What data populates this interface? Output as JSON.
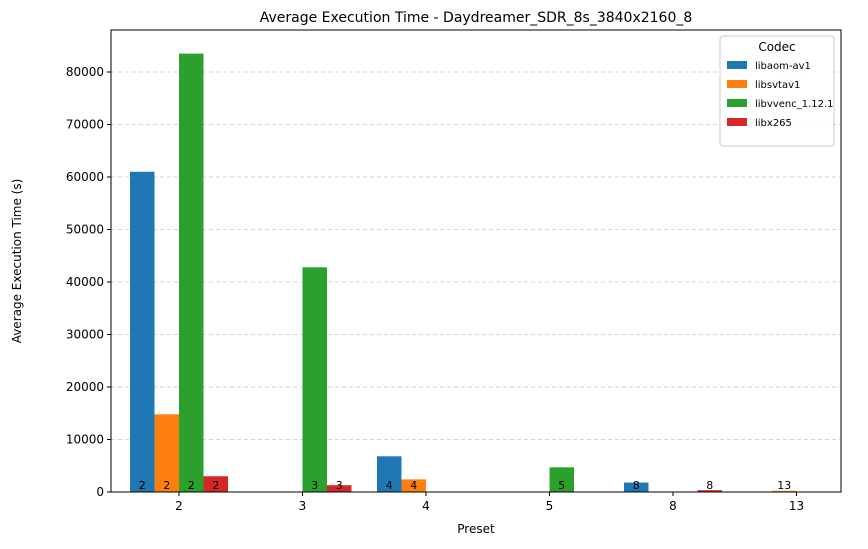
{
  "chart_data": {
    "type": "bar",
    "title": "Average Execution Time - Daydreamer_SDR_8s_3840x2160_8",
    "xlabel": "Preset",
    "ylabel": "Average Execution Time (s)",
    "categories": [
      "2",
      "3",
      "4",
      "5",
      "8",
      "13"
    ],
    "ylim": [
      0,
      88000
    ],
    "yticks": [
      0,
      10000,
      20000,
      30000,
      40000,
      50000,
      60000,
      70000,
      80000
    ],
    "grid": "y-dashed",
    "legend": {
      "title": "Codec",
      "placement": "top-right"
    },
    "series": [
      {
        "name": "libaom-av1",
        "color": "#1f77b4",
        "values": [
          61000,
          null,
          6800,
          null,
          1800,
          null
        ]
      },
      {
        "name": "libsvtav1",
        "color": "#ff7f0e",
        "values": [
          14800,
          null,
          2400,
          null,
          null,
          220
        ]
      },
      {
        "name": "libvvenc_1.12.1",
        "color": "#2ca02c",
        "values": [
          83500,
          42800,
          null,
          4700,
          null,
          null
        ]
      },
      {
        "name": "libx265",
        "color": "#d62728",
        "values": [
          3000,
          1300,
          null,
          null,
          350,
          null
        ]
      }
    ],
    "annotations": [
      {
        "series": 0,
        "category": "2",
        "text": "2"
      },
      {
        "series": 1,
        "category": "2",
        "text": "2"
      },
      {
        "series": 2,
        "category": "2",
        "text": "2"
      },
      {
        "series": 3,
        "category": "2",
        "text": "2"
      },
      {
        "series": 2,
        "category": "3",
        "text": "3"
      },
      {
        "series": 3,
        "category": "3",
        "text": "3"
      },
      {
        "series": 0,
        "category": "4",
        "text": "4"
      },
      {
        "series": 1,
        "category": "4",
        "text": "4"
      },
      {
        "series": 2,
        "category": "5",
        "text": "5"
      },
      {
        "series": 0,
        "category": "8",
        "text": "8"
      },
      {
        "series": 3,
        "category": "8",
        "text": "8"
      },
      {
        "series": 1,
        "category": "13",
        "text": "13"
      }
    ]
  }
}
